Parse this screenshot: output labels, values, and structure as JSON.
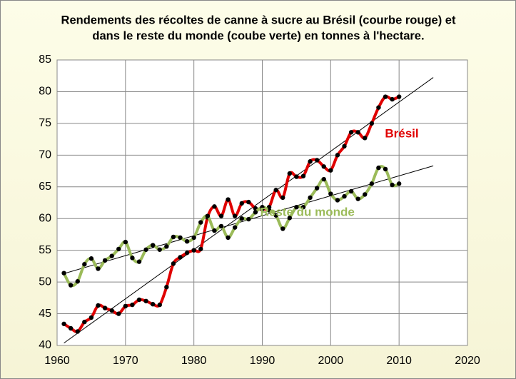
{
  "chart_data": {
    "type": "line",
    "title": [
      "Rendements  des récoltes de canne à sucre au Brésil (courbe rouge) et",
      "dans le reste du monde (coube verte) en tonnes à l'hectare."
    ],
    "x": [
      1961,
      1962,
      1963,
      1964,
      1965,
      1966,
      1967,
      1968,
      1969,
      1970,
      1971,
      1972,
      1973,
      1974,
      1975,
      1976,
      1977,
      1978,
      1979,
      1980,
      1981,
      1982,
      1983,
      1984,
      1985,
      1986,
      1987,
      1988,
      1989,
      1990,
      1991,
      1992,
      1993,
      1994,
      1995,
      1996,
      1997,
      1998,
      1999,
      2000,
      2001,
      2002,
      2003,
      2004,
      2005,
      2006,
      2007,
      2008,
      2009,
      2010
    ],
    "series": [
      {
        "name": "Brésil",
        "color": "#e00000",
        "values": [
          43.4,
          42.7,
          42.2,
          43.7,
          44.4,
          46.3,
          45.9,
          45.5,
          45.0,
          46.2,
          46.4,
          47.2,
          47.0,
          46.5,
          46.4,
          49.2,
          52.9,
          53.9,
          54.6,
          55.0,
          55.2,
          60.2,
          61.9,
          60.4,
          63.0,
          60.4,
          62.4,
          62.6,
          61.6,
          61.5,
          61.8,
          64.5,
          63.3,
          67.1,
          66.6,
          66.7,
          69.0,
          69.2,
          68.2,
          67.6,
          70.0,
          71.4,
          73.6,
          73.6,
          72.7,
          75.0,
          77.5,
          79.2,
          78.8,
          79.2
        ]
      },
      {
        "name": "Reste du monde",
        "color": "#9bbb59",
        "values": [
          51.4,
          49.5,
          50.1,
          52.8,
          53.7,
          52.1,
          53.4,
          54.1,
          55.2,
          56.3,
          53.8,
          53.2,
          55.1,
          55.8,
          55.1,
          55.6,
          57.1,
          57.0,
          56.4,
          57.0,
          59.4,
          60.4,
          58.1,
          58.8,
          57.0,
          58.6,
          60.0,
          59.9,
          61.0,
          61.8,
          61.3,
          60.5,
          58.4,
          60.1,
          61.8,
          61.8,
          63.3,
          64.8,
          66.2,
          63.9,
          62.9,
          63.5,
          64.3,
          63.1,
          63.8,
          65.5,
          68.0,
          67.8,
          65.3,
          65.5
        ]
      }
    ],
    "xlim": [
      1960,
      2020
    ],
    "xticks": [
      1960,
      1970,
      1980,
      1990,
      2000,
      2010,
      2020
    ],
    "ylim": [
      40,
      85
    ],
    "yticks": [
      40,
      45,
      50,
      55,
      60,
      65,
      70,
      75,
      80,
      85
    ],
    "grid": true,
    "trendline": true
  }
}
